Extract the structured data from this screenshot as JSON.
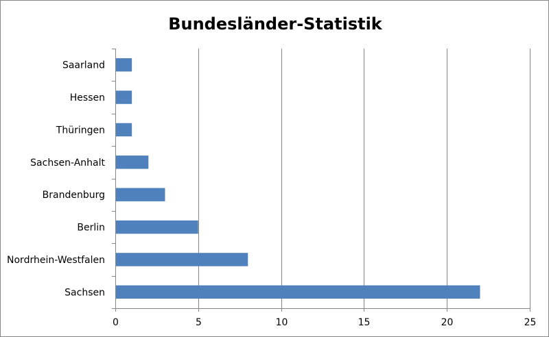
{
  "chart_data": {
    "type": "bar",
    "orientation": "horizontal",
    "title": "Bundesländer-Statistik",
    "categories": [
      "Sachsen",
      "Nordrhein-Westfalen",
      "Berlin",
      "Brandenburg",
      "Sachsen-Anhalt",
      "Thüringen",
      "Hessen",
      "Saarland"
    ],
    "values": [
      22,
      8,
      5,
      3,
      2,
      1,
      1,
      1
    ],
    "xlim": [
      0,
      25
    ],
    "xticks": [
      0,
      5,
      10,
      15,
      20,
      25
    ],
    "grid": "vertical",
    "legend": "none",
    "bar_color": "#4f81bd"
  }
}
